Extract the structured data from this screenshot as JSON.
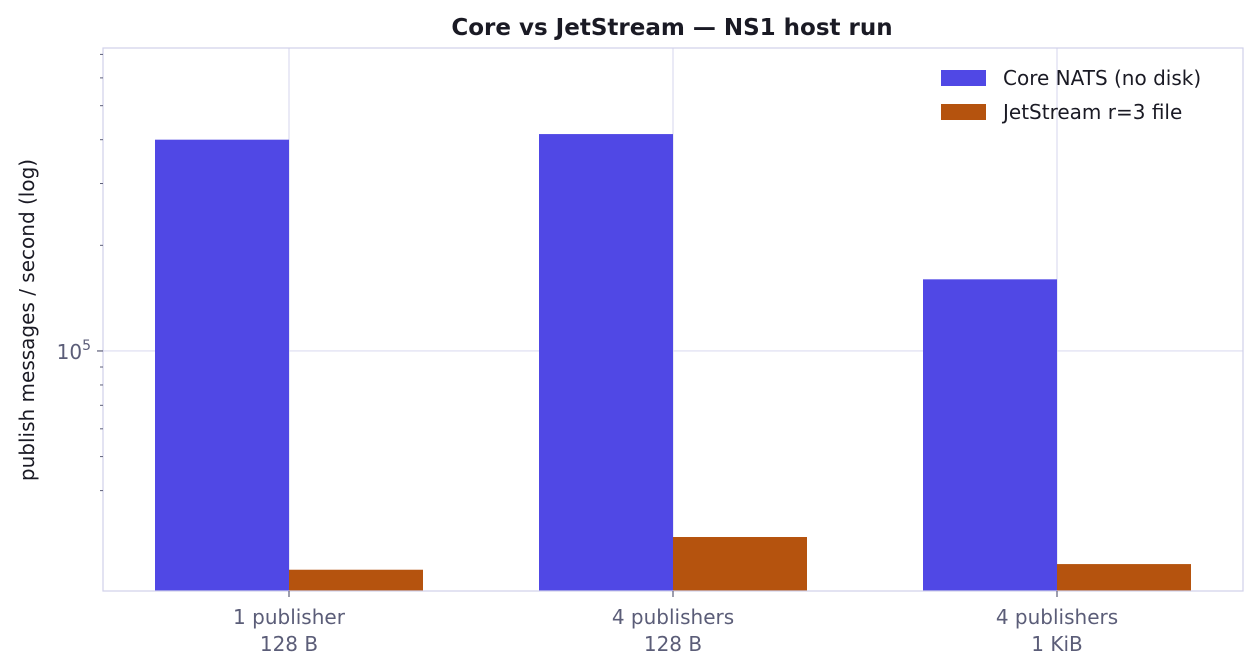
{
  "chart_data": {
    "type": "bar",
    "title": "Core vs JetStream — NS1 host run",
    "xlabel": "",
    "ylabel": "publish messages / second (log)",
    "yscale": "log",
    "ylim": [
      20700,
      730000
    ],
    "ytick_major": [
      {
        "value": 100000,
        "base": "10",
        "exp": "5"
      }
    ],
    "categories": [
      [
        "1 publisher",
        "128 B"
      ],
      [
        "4 publishers",
        "128 B"
      ],
      [
        "4 publishers",
        "1 KiB"
      ]
    ],
    "series": [
      {
        "name": "Core NATS (no disk)",
        "color": "#5048e5",
        "values": [
          400000,
          415000,
          160000
        ]
      },
      {
        "name": "JetStream r=3 file",
        "color": "#b5530e",
        "values": [
          23800,
          29500,
          24700
        ]
      }
    ],
    "grid": true,
    "legend": "top-right"
  }
}
